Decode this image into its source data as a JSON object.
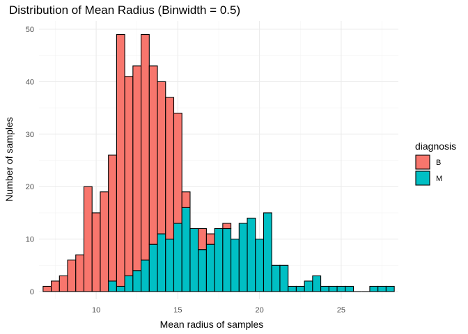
{
  "chart_data": {
    "type": "bar",
    "title": "Distribution of Mean Radius (Binwidth = 0.5)",
    "xlabel": "Mean radius of samples",
    "ylabel": "Number of samples",
    "xlim": [
      6.5,
      28.5
    ],
    "ylim": [
      0,
      50
    ],
    "x_ticks": [
      10,
      15,
      20,
      25
    ],
    "y_ticks": [
      0,
      10,
      20,
      30,
      40,
      50
    ],
    "grid": true,
    "stacked": true,
    "binwidth": 0.5,
    "legend": {
      "title": "diagnosis",
      "position": "right"
    },
    "bin_centers": [
      7.0,
      7.5,
      8.0,
      8.5,
      9.0,
      9.5,
      10.0,
      10.5,
      11.0,
      11.5,
      12.0,
      12.5,
      13.0,
      13.5,
      14.0,
      14.5,
      15.0,
      15.5,
      16.0,
      16.5,
      17.0,
      17.5,
      18.0,
      18.5,
      19.0,
      19.5,
      20.0,
      20.5,
      21.0,
      21.5,
      22.0,
      22.5,
      23.0,
      23.5,
      24.0,
      24.5,
      25.0,
      25.5,
      26.0,
      26.5,
      27.0,
      27.5,
      28.0
    ],
    "series": [
      {
        "name": "B",
        "color": "#F8766D",
        "values": [
          1,
          2,
          3,
          6,
          7,
          20,
          15,
          19,
          24,
          48,
          38,
          39,
          43,
          34,
          29,
          27,
          21,
          3,
          0,
          4,
          2,
          0,
          1,
          0,
          0,
          0,
          0,
          0,
          0,
          0,
          0,
          0,
          0,
          0,
          0,
          0,
          0,
          0,
          0,
          0,
          0,
          0,
          0
        ]
      },
      {
        "name": "M",
        "color": "#00BFC4",
        "values": [
          0,
          0,
          0,
          0,
          0,
          0,
          0,
          0,
          2,
          1,
          3,
          4,
          6,
          9,
          11,
          10,
          13,
          16,
          12,
          8,
          9,
          12,
          12,
          10,
          13,
          14,
          10,
          15,
          5,
          5,
          1,
          1,
          2,
          3,
          1,
          1,
          1,
          1,
          0,
          0,
          1,
          1,
          1
        ]
      }
    ]
  }
}
